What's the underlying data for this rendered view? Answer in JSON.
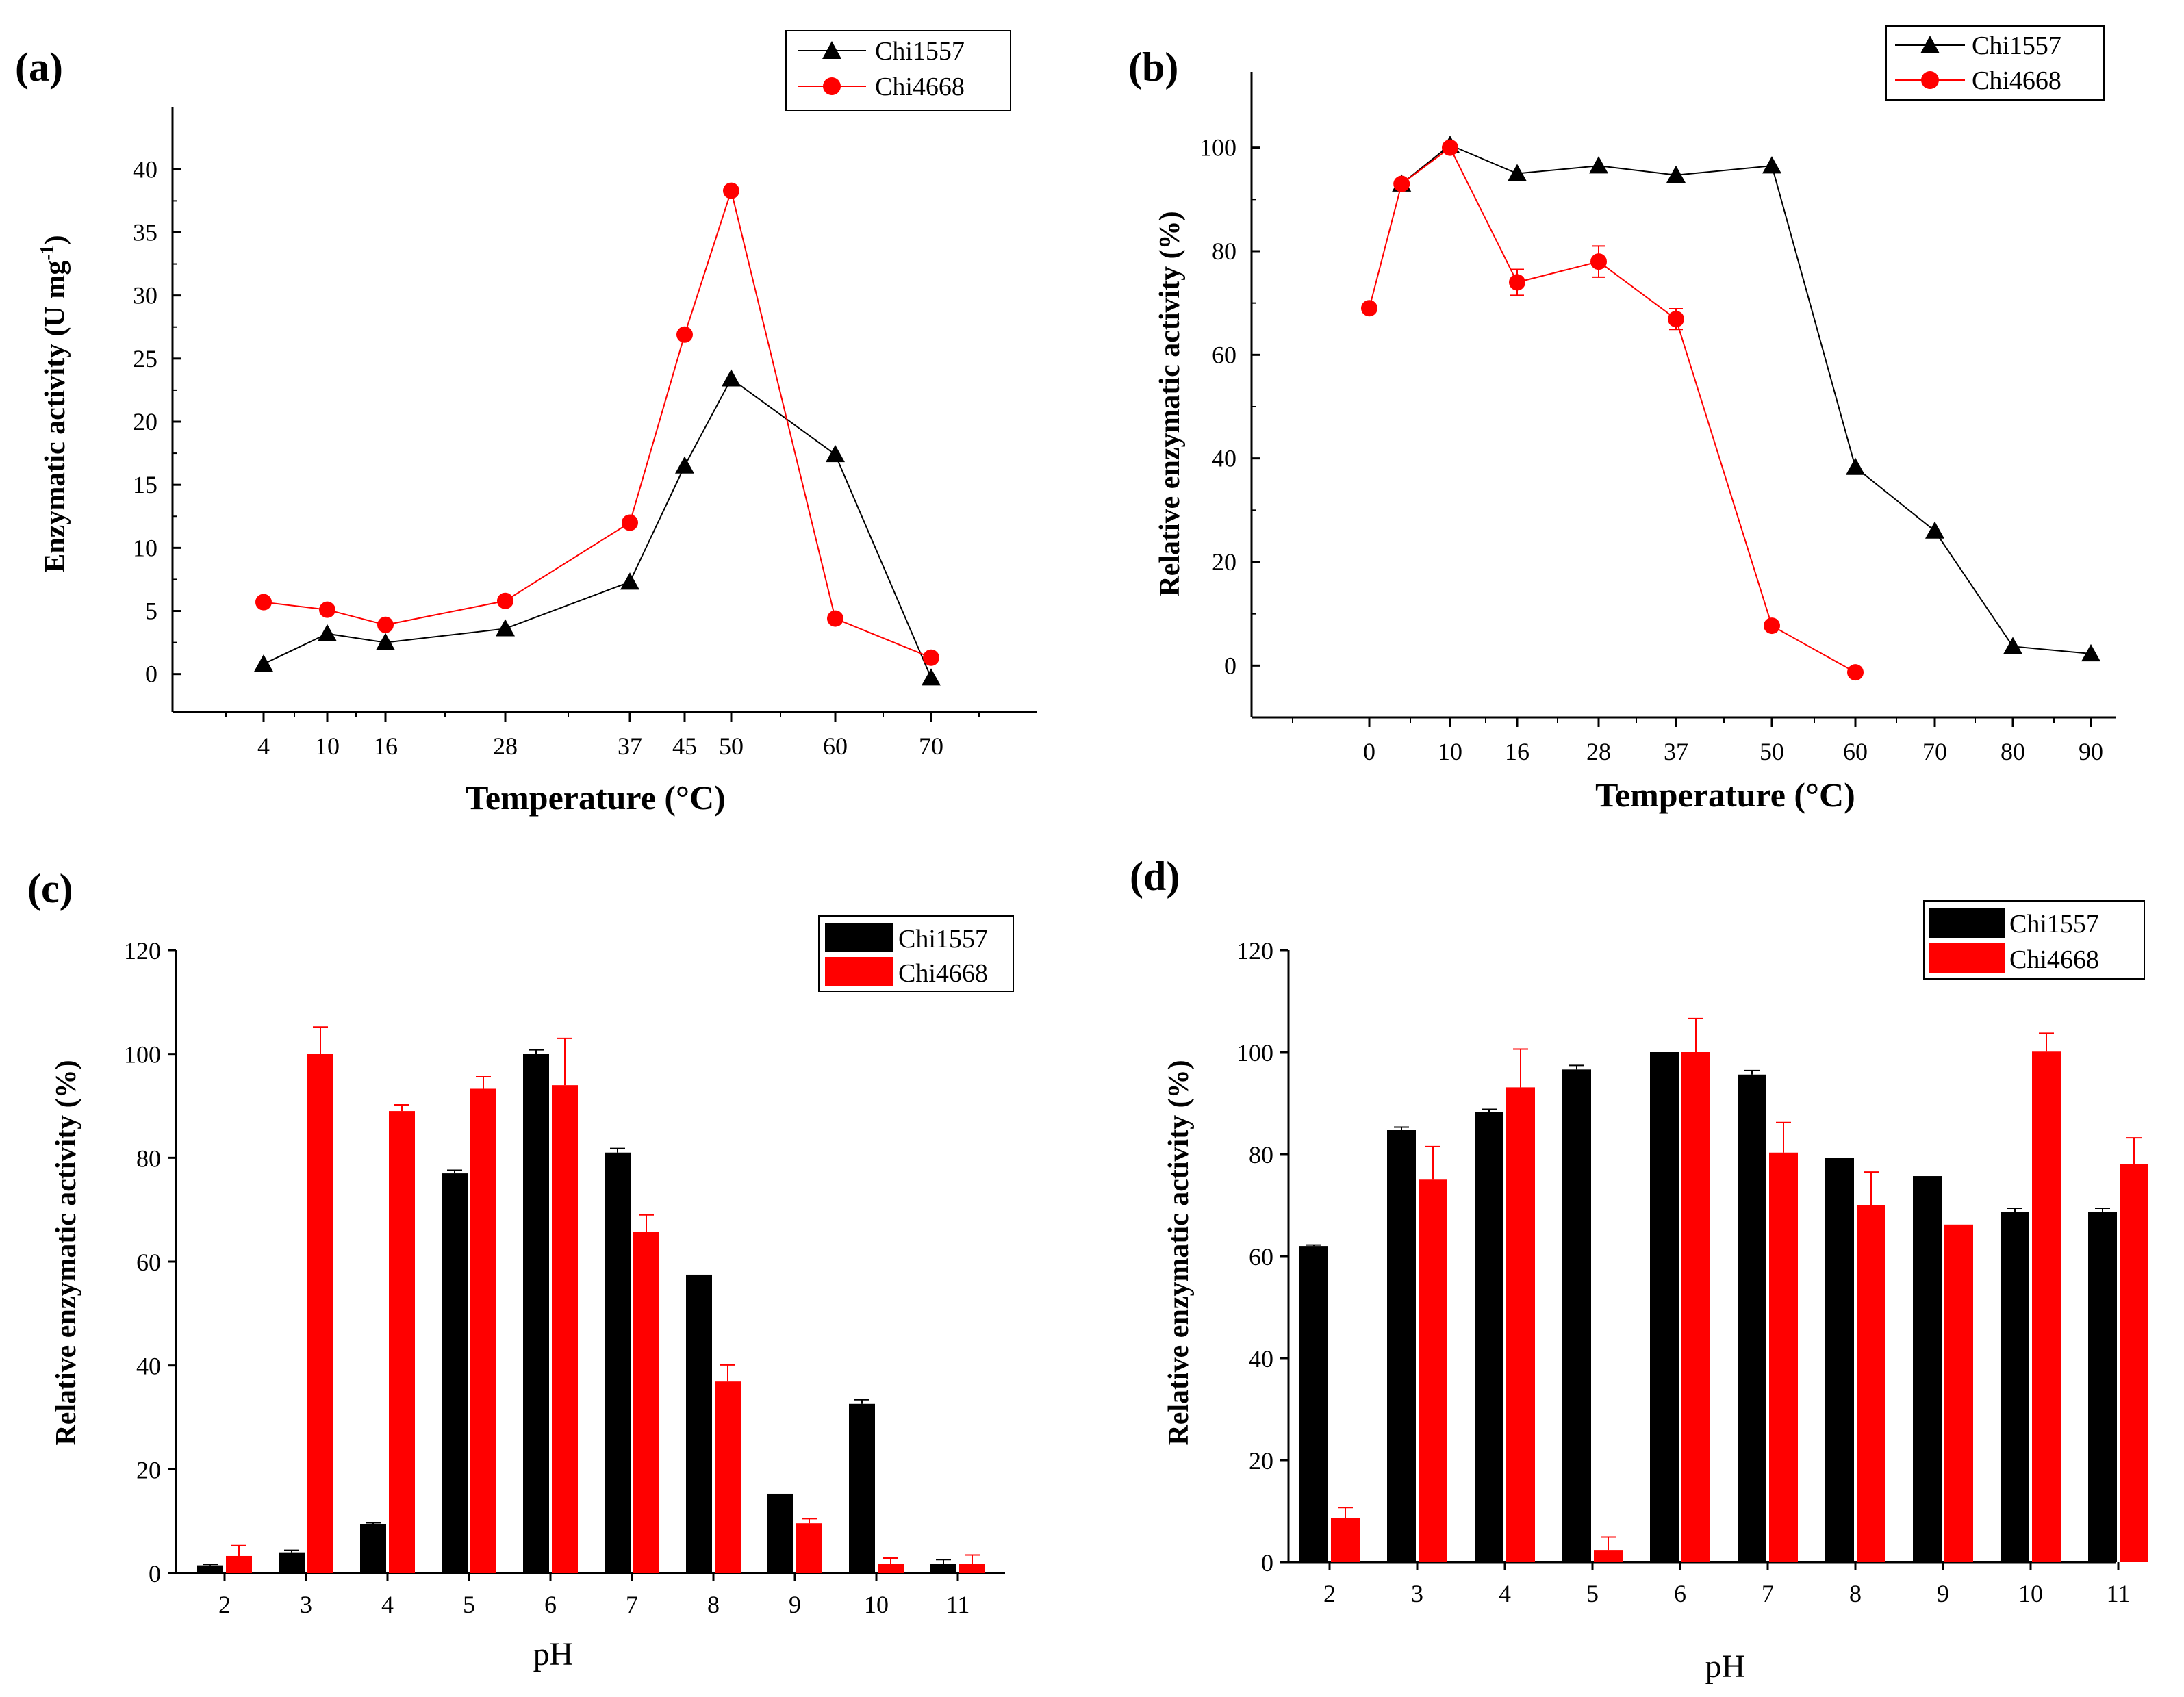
{
  "colors": {
    "chi1557": "#000000",
    "chi4668": "#ff0000",
    "axis": "#000000",
    "background": "#ffffff"
  },
  "chart_data": [
    {
      "panel": "(a)",
      "type": "line",
      "xlabel": "Temperature  (°C)",
      "ylabel": "Enzymatic activity (U mg-1)",
      "ylabel_main": "Enzymatic activity (U mg",
      "ylabel_sup": "-1",
      "ylabel_close": ")",
      "x": [
        4,
        10,
        16,
        28,
        37,
        45,
        50,
        60,
        70
      ],
      "x_tick_labels": [
        "4",
        "10",
        "16",
        "28",
        "37",
        "45",
        "50",
        "60",
        "70"
      ],
      "ylim": [
        -3,
        43
      ],
      "y_ticks": [
        0,
        5,
        10,
        15,
        20,
        25,
        30,
        35,
        40
      ],
      "y_tick_labels": [
        "0",
        "5",
        "10",
        "15",
        "20",
        "25",
        "30",
        "35",
        "40"
      ],
      "series": [
        {
          "name": "Chi1557",
          "marker": "triangle",
          "values": [
            0.8,
            3.2,
            2.5,
            3.6,
            7.3,
            16.5,
            23.4,
            17.4,
            -0.3
          ]
        },
        {
          "name": "Chi4668",
          "marker": "circle",
          "values": [
            5.7,
            5.1,
            3.9,
            5.8,
            12.0,
            26.9,
            38.3,
            4.4,
            1.3
          ]
        }
      ],
      "legend": [
        "Chi1557",
        "Chi4668"
      ],
      "legend_position": "top-right"
    },
    {
      "panel": "(b)",
      "type": "line",
      "xlabel": "Temperature  (°C)",
      "ylabel": "Relative enzymatic activity (%)",
      "x_tick_labels": [
        "0",
        "10",
        "16",
        "28",
        "37",
        "50",
        "60",
        "70",
        "80",
        "90"
      ],
      "ylim": [
        -10,
        110
      ],
      "y_ticks": [
        0,
        20,
        40,
        60,
        80,
        100
      ],
      "y_tick_labels": [
        "0",
        "20",
        "40",
        "60",
        "80",
        "100"
      ],
      "series": [
        {
          "name": "Chi1557",
          "marker": "triangle",
          "x": [
            4,
            10,
            16,
            28,
            37,
            50,
            60,
            70,
            80,
            90
          ],
          "values": [
            93,
            100.5,
            95,
            96.5,
            94.7,
            96.5,
            38.3,
            26,
            3.7,
            2.3
          ]
        },
        {
          "name": "Chi4668",
          "marker": "circle",
          "x": [
            0,
            4,
            10,
            16,
            28,
            37,
            50,
            60
          ],
          "values": [
            69,
            93,
            100,
            74,
            78,
            66.9,
            7.7,
            -1.3
          ],
          "errors": [
            0,
            0,
            0,
            2.5,
            3,
            2,
            0,
            0
          ]
        }
      ],
      "legend": [
        "Chi1557",
        "Chi4668"
      ],
      "legend_position": "top-right"
    },
    {
      "panel": "(c)",
      "type": "bar",
      "xlabel": "pH",
      "ylabel": "Relative enzymatic activity (%)",
      "categories": [
        "2",
        "3",
        "4",
        "5",
        "6",
        "7",
        "8",
        "9",
        "10",
        "11"
      ],
      "ylim": [
        0,
        120
      ],
      "y_ticks": [
        0,
        20,
        40,
        60,
        80,
        100,
        120
      ],
      "y_tick_labels": [
        "0",
        "20",
        "40",
        "60",
        "80",
        "100",
        "120"
      ],
      "series": [
        {
          "name": "Chi1557",
          "values": [
            1.5,
            4,
            9.4,
            77,
            100,
            81,
            57.5,
            15.3,
            32.6,
            1.8
          ],
          "errors": [
            0.2,
            0.4,
            0.3,
            0.6,
            0.8,
            0.8,
            0,
            0,
            0.8,
            0.8
          ]
        },
        {
          "name": "Chi4668",
          "values": [
            3.3,
            100,
            89,
            93.3,
            94,
            65.7,
            36.9,
            9.6,
            1.8,
            1.8
          ],
          "errors": [
            2,
            5.2,
            1.2,
            2.3,
            9,
            3.3,
            3.2,
            0.9,
            1.1,
            1.7
          ]
        }
      ],
      "legend": [
        "Chi1557",
        "Chi4668"
      ],
      "legend_position": "top-right"
    },
    {
      "panel": "(d)",
      "type": "bar",
      "xlabel": "pH",
      "ylabel": "Relative enzymatic activity (%)",
      "categories": [
        "2",
        "3",
        "4",
        "5",
        "6",
        "7",
        "8",
        "9",
        "10",
        "11"
      ],
      "ylim": [
        0,
        120
      ],
      "y_ticks": [
        0,
        20,
        40,
        60,
        80,
        100,
        120
      ],
      "y_tick_labels": [
        "0",
        "20",
        "40",
        "60",
        "80",
        "100",
        "120"
      ],
      "series": [
        {
          "name": "Chi1557",
          "values": [
            62,
            84.7,
            88.2,
            96.6,
            100,
            95.6,
            79.2,
            75.7,
            68.6,
            68.6
          ],
          "errors": [
            0.2,
            0.6,
            0.6,
            0.8,
            0,
            0.8,
            0,
            0,
            0.8,
            0.8
          ]
        },
        {
          "name": "Chi4668",
          "values": [
            8.6,
            75,
            93.1,
            2.4,
            100,
            80.3,
            70,
            66.2,
            100.1,
            78.1
          ],
          "errors": [
            2.1,
            6.5,
            7.5,
            2.5,
            6.6,
            5.9,
            6.5,
            0,
            3.6,
            5.1
          ]
        }
      ],
      "legend": [
        "Chi1557",
        "Chi4668"
      ],
      "legend_position": "top-right"
    }
  ]
}
